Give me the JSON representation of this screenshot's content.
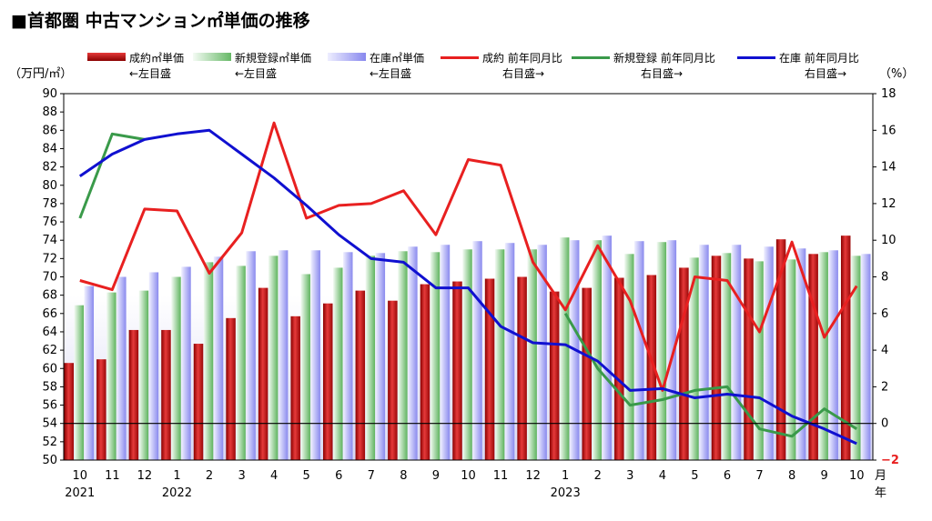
{
  "chart_data": {
    "type": "bar+line",
    "title": "■首都圏 中古マンション㎡単価の推移",
    "ylabel_left": "（万円/㎡）",
    "ylabel_right": "（%）",
    "xlabel": "月\n年",
    "ylim_left": [
      50,
      90
    ],
    "ylim_right": [
      -2,
      18
    ],
    "left_ticks": [
      50,
      52,
      54,
      56,
      58,
      60,
      62,
      64,
      66,
      68,
      70,
      72,
      74,
      76,
      78,
      80,
      82,
      84,
      86,
      88,
      90
    ],
    "right_ticks": [
      "18",
      "16",
      "14",
      "12",
      "10",
      "8",
      "6",
      "4",
      "2",
      "0",
      "−2"
    ],
    "categories": [
      "10",
      "11",
      "12",
      "1",
      "2",
      "3",
      "4",
      "5",
      "6",
      "7",
      "8",
      "9",
      "10",
      "11",
      "12",
      "1",
      "2",
      "3",
      "4",
      "5",
      "6",
      "7",
      "8",
      "9",
      "10"
    ],
    "year_labels": [
      {
        "index": 0,
        "label": "2021"
      },
      {
        "index": 3,
        "label": "2022"
      },
      {
        "index": 15,
        "label": "2023"
      }
    ],
    "bar_series": [
      {
        "name": "成約㎡単価",
        "axis_note": "←左目盛",
        "color": "#d41818",
        "values": [
          60.6,
          61.0,
          64.2,
          64.2,
          62.7,
          65.5,
          68.8,
          65.7,
          67.1,
          68.5,
          67.4,
          69.2,
          69.5,
          69.8,
          70.0,
          68.4,
          68.8,
          69.9,
          70.2,
          71.0,
          72.3,
          72.0,
          74.1,
          72.5,
          74.5
        ]
      },
      {
        "name": "新規登録㎡単価",
        "axis_note": "←左目盛",
        "color": "#7ec77e",
        "values": [
          66.9,
          68.3,
          68.5,
          70.0,
          71.6,
          71.2,
          72.3,
          70.3,
          71.0,
          72.3,
          72.8,
          72.7,
          73.0,
          73.0,
          73.0,
          74.3,
          74.0,
          72.5,
          73.8,
          72.1,
          72.6,
          71.7,
          71.9,
          72.7,
          72.3
        ]
      },
      {
        "name": "在庫㎡単価",
        "axis_note": "←左目盛",
        "color": "#9a9af0",
        "values": [
          69.0,
          70.0,
          70.5,
          71.1,
          72.2,
          72.8,
          72.9,
          72.9,
          72.7,
          72.6,
          73.3,
          73.5,
          73.9,
          73.7,
          73.5,
          74.0,
          74.5,
          73.9,
          74.0,
          73.5,
          73.5,
          73.3,
          73.1,
          72.9,
          72.5
        ]
      }
    ],
    "line_series": [
      {
        "name": "成約 前年同月比",
        "axis_note": "右目盛→",
        "color": "#e82020",
        "values": [
          7.8,
          7.3,
          11.7,
          11.6,
          8.2,
          10.4,
          16.4,
          11.2,
          11.9,
          12.0,
          12.7,
          10.3,
          14.4,
          14.1,
          8.8,
          6.2,
          9.7,
          6.7,
          1.8,
          8.0,
          7.8,
          5.0,
          9.9,
          4.7,
          7.5
        ]
      },
      {
        "name": "新規登録 前年同月比",
        "axis_note": "右目盛→",
        "color": "#3a9a4a",
        "values": [
          11.2,
          15.8,
          15.5,
          null,
          null,
          null,
          null,
          null,
          null,
          null,
          null,
          null,
          null,
          null,
          null,
          6.0,
          3.0,
          1.0,
          1.3,
          1.8,
          2.0,
          -0.3,
          -0.7,
          0.8,
          -0.3
        ]
      },
      {
        "name": "在庫 前年同月比",
        "axis_note": "右目盛→",
        "color": "#1010d0",
        "values": [
          13.5,
          14.7,
          15.5,
          15.8,
          16.0,
          14.7,
          13.4,
          11.9,
          10.3,
          9.0,
          8.8,
          7.4,
          7.4,
          5.3,
          4.4,
          4.3,
          3.4,
          1.8,
          1.9,
          1.4,
          1.6,
          1.4,
          0.4,
          -0.3,
          -1.1
        ]
      }
    ]
  }
}
